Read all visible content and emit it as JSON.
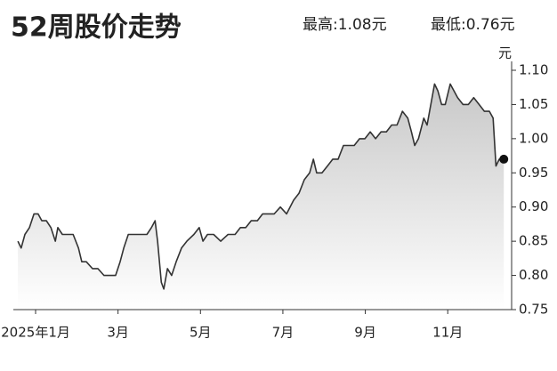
{
  "chart_data": {
    "type": "line",
    "title": "52周股价走势",
    "annotations": [
      "最高:1.08元",
      "最低:0.76元"
    ],
    "y_label": "元",
    "color": "#333333",
    "x": [
      0.57,
      0.65,
      0.74,
      0.85,
      0.96,
      1.06,
      1.15,
      1.26,
      1.37,
      1.48,
      1.54,
      1.65,
      1.78,
      1.91,
      2.04,
      2.12,
      2.23,
      2.38,
      2.51,
      2.66,
      2.81,
      2.94,
      3.05,
      3.14,
      3.25,
      3.38,
      3.55,
      3.7,
      3.81,
      3.9,
      3.96,
      4.05,
      4.11,
      4.2,
      4.3,
      4.41,
      4.54,
      4.67,
      4.84,
      4.97,
      5.06,
      5.17,
      5.32,
      5.49,
      5.67,
      5.84,
      5.97,
      6.1,
      6.23,
      6.38,
      6.51,
      6.66,
      6.79,
      6.94,
      7.09,
      7.26,
      7.39,
      7.52,
      7.65,
      7.74,
      7.82,
      7.95,
      8.08,
      8.21,
      8.34,
      8.47,
      8.6,
      8.73,
      8.86,
      8.99,
      9.12,
      9.25,
      9.38,
      9.51,
      9.64,
      9.77,
      9.9,
      10.03,
      10.12,
      10.2,
      10.29,
      10.42,
      10.5,
      10.59,
      10.68,
      10.76,
      10.85,
      10.94,
      11.06,
      11.15,
      11.24,
      11.37,
      11.5,
      11.63,
      11.76,
      11.89,
      12.01,
      12.1,
      12.17,
      12.25,
      12.36
    ],
    "values": [
      0.85,
      0.84,
      0.86,
      0.87,
      0.89,
      0.89,
      0.88,
      0.88,
      0.87,
      0.85,
      0.87,
      0.86,
      0.86,
      0.86,
      0.84,
      0.82,
      0.82,
      0.81,
      0.81,
      0.8,
      0.8,
      0.8,
      0.82,
      0.84,
      0.86,
      0.86,
      0.86,
      0.86,
      0.87,
      0.88,
      0.85,
      0.79,
      0.78,
      0.81,
      0.8,
      0.82,
      0.84,
      0.85,
      0.86,
      0.87,
      0.85,
      0.86,
      0.86,
      0.85,
      0.86,
      0.86,
      0.87,
      0.87,
      0.88,
      0.88,
      0.89,
      0.89,
      0.89,
      0.9,
      0.89,
      0.91,
      0.92,
      0.94,
      0.95,
      0.97,
      0.95,
      0.95,
      0.96,
      0.97,
      0.97,
      0.99,
      0.99,
      0.99,
      1.0,
      1.0,
      1.01,
      1.0,
      1.01,
      1.01,
      1.02,
      1.02,
      1.04,
      1.03,
      1.01,
      0.99,
      1.0,
      1.03,
      1.02,
      1.05,
      1.08,
      1.07,
      1.05,
      1.05,
      1.08,
      1.07,
      1.06,
      1.05,
      1.05,
      1.06,
      1.05,
      1.04,
      1.04,
      1.03,
      0.96,
      0.97,
      0.97
    ],
    "xlim": [
      0.46,
      12.55
    ],
    "xticks": [
      {
        "value": 1,
        "label": "2025年1月"
      },
      {
        "value": 3,
        "label": "3月"
      },
      {
        "value": 5,
        "label": "5月"
      },
      {
        "value": 7,
        "label": "7月"
      },
      {
        "value": 9,
        "label": "9月"
      },
      {
        "value": 11,
        "label": "11月"
      }
    ],
    "ylim": [
      0.75,
      1.1
    ],
    "yticks": [
      {
        "value": 0.75,
        "label": "0.75"
      },
      {
        "value": 0.8,
        "label": "0.80"
      },
      {
        "value": 0.85,
        "label": "0.85"
      },
      {
        "value": 0.9,
        "label": "0.90"
      },
      {
        "value": 0.95,
        "label": "0.95"
      },
      {
        "value": 1.0,
        "label": "1.00"
      },
      {
        "value": 1.05,
        "label": "1.05"
      },
      {
        "value": 1.1,
        "label": "1.10"
      }
    ]
  }
}
